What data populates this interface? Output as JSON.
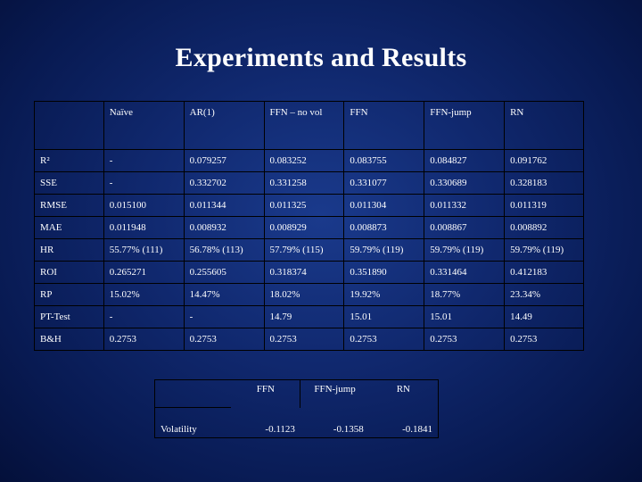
{
  "title": "Experiments and Results",
  "main_table": {
    "headers": [
      "",
      "Naïve",
      "AR(1)",
      "FFN – no vol",
      "FFN",
      "FFN-jump",
      "RN"
    ],
    "rows": [
      {
        "label": "R²",
        "cells": [
          "-",
          "0.079257",
          "0.083252",
          "0.083755",
          "0.084827",
          "0.091762"
        ]
      },
      {
        "label": "SSE",
        "cells": [
          "-",
          "0.332702",
          "0.331258",
          "0.331077",
          "0.330689",
          "0.328183"
        ]
      },
      {
        "label": "RMSE",
        "cells": [
          "0.015100",
          "0.011344",
          "0.011325",
          "0.011304",
          "0.011332",
          "0.011319"
        ]
      },
      {
        "label": "MAE",
        "cells": [
          "0.011948",
          "0.008932",
          "0.008929",
          "0.008873",
          "0.008867",
          "0.008892"
        ]
      },
      {
        "label": "HR",
        "cells": [
          "55.77% (111)",
          "56.78% (113)",
          "57.79% (115)",
          "59.79% (119)",
          "59.79% (119)",
          "59.79% (119)"
        ]
      },
      {
        "label": "ROI",
        "cells": [
          "0.265271",
          "0.255605",
          "0.318374",
          "0.351890",
          "0.331464",
          "0.412183"
        ]
      },
      {
        "label": "RP",
        "cells": [
          "15.02%",
          "14.47%",
          "18.02%",
          "19.92%",
          "18.77%",
          "23.34%"
        ]
      },
      {
        "label": "PT-Test",
        "cells": [
          "-",
          "-",
          "14.79",
          "15.01",
          "15.01",
          "14.49"
        ]
      },
      {
        "label": "B&H",
        "cells": [
          "0.2753",
          "0.2753",
          "0.2753",
          "0.2753",
          "0.2753",
          "0.2753"
        ]
      }
    ]
  },
  "volatility_table": {
    "headers": [
      "",
      "FFN",
      "FFN-jump",
      "RN"
    ],
    "row_label": "Volatility",
    "values": [
      "-0.1123",
      "-0.1358",
      "-0.1841"
    ]
  }
}
